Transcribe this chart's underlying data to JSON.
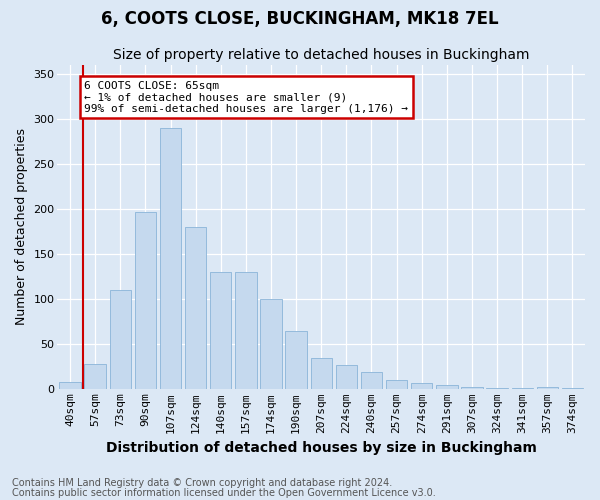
{
  "title": "6, COOTS CLOSE, BUCKINGHAM, MK18 7EL",
  "subtitle": "Size of property relative to detached houses in Buckingham",
  "xlabel": "Distribution of detached houses by size in Buckingham",
  "ylabel": "Number of detached properties",
  "categories": [
    "40sqm",
    "57sqm",
    "73sqm",
    "90sqm",
    "107sqm",
    "124sqm",
    "140sqm",
    "157sqm",
    "174sqm",
    "190sqm",
    "207sqm",
    "224sqm",
    "240sqm",
    "257sqm",
    "274sqm",
    "291sqm",
    "307sqm",
    "324sqm",
    "341sqm",
    "357sqm",
    "374sqm"
  ],
  "values": [
    8,
    28,
    110,
    197,
    290,
    180,
    130,
    130,
    100,
    65,
    35,
    27,
    19,
    10,
    7,
    5,
    3,
    2,
    1,
    3,
    2
  ],
  "bar_color": "#c5d9ee",
  "bar_edge_color": "#8ab4d8",
  "highlight_line_color": "#cc0000",
  "highlight_bar_index": 1,
  "annotation_text": "6 COOTS CLOSE: 65sqm\n← 1% of detached houses are smaller (9)\n99% of semi-detached houses are larger (1,176) →",
  "annotation_box_facecolor": "#ffffff",
  "annotation_box_edgecolor": "#cc0000",
  "ylim": [
    0,
    360
  ],
  "yticks": [
    0,
    50,
    100,
    150,
    200,
    250,
    300,
    350
  ],
  "background_color": "#dce8f5",
  "grid_color": "#ffffff",
  "footer_line1": "Contains HM Land Registry data © Crown copyright and database right 2024.",
  "footer_line2": "Contains public sector information licensed under the Open Government Licence v3.0.",
  "title_fontsize": 12,
  "subtitle_fontsize": 10,
  "xlabel_fontsize": 10,
  "ylabel_fontsize": 9,
  "tick_fontsize": 8,
  "footer_fontsize": 7
}
